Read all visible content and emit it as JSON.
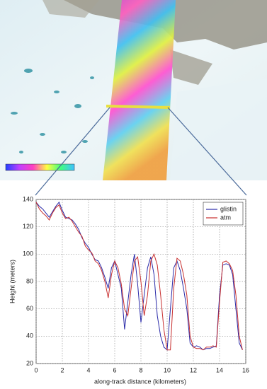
{
  "chart_data": {
    "type": "line",
    "xlabel": "along-track distance (kilometers)",
    "ylabel": "Height (meters)",
    "x": [
      0,
      0.25,
      0.5,
      0.75,
      1,
      1.25,
      1.5,
      1.75,
      2,
      2.25,
      2.5,
      2.75,
      3,
      3.25,
      3.5,
      3.75,
      4,
      4.25,
      4.5,
      4.75,
      5,
      5.25,
      5.5,
      5.75,
      6,
      6.25,
      6.5,
      6.75,
      7,
      7.25,
      7.5,
      7.75,
      8,
      8.25,
      8.5,
      8.75,
      9,
      9.25,
      9.5,
      9.75,
      10,
      10.25,
      10.5,
      10.75,
      11,
      11.25,
      11.5,
      11.75,
      12,
      12.25,
      12.5,
      12.75,
      13,
      13.25,
      13.5,
      13.75,
      14,
      14.25,
      14.5,
      14.75,
      15,
      15.25,
      15.5,
      15.75
    ],
    "series": [
      {
        "name": "glistin",
        "color": "#2a2aa8",
        "values": [
          138,
          135,
          133,
          130,
          127,
          131,
          135,
          138,
          132,
          127,
          126,
          125,
          122,
          118,
          112,
          108,
          105,
          100,
          96,
          95,
          90,
          83,
          75,
          90,
          95,
          85,
          75,
          45,
          65,
          85,
          100,
          78,
          50,
          70,
          90,
          98,
          85,
          55,
          40,
          32,
          30,
          60,
          90,
          95,
          88,
          75,
          60,
          35,
          32,
          33,
          32,
          30,
          31,
          31,
          32,
          33,
          70,
          92,
          93,
          92,
          85,
          60,
          35,
          30
        ]
      },
      {
        "name": "atm",
        "color": "#c83030",
        "values": [
          138,
          133,
          130,
          128,
          125,
          130,
          134,
          136,
          130,
          126,
          127,
          124,
          120,
          116,
          113,
          106,
          103,
          101,
          95,
          93,
          88,
          80,
          68,
          85,
          95,
          90,
          78,
          60,
          55,
          75,
          95,
          98,
          80,
          55,
          70,
          95,
          100,
          92,
          70,
          45,
          30,
          30,
          75,
          97,
          95,
          85,
          70,
          40,
          32,
          31,
          31,
          30,
          32,
          32,
          33,
          32,
          65,
          94,
          95,
          93,
          88,
          70,
          40,
          30
        ]
      }
    ],
    "xlim": [
      0,
      16
    ],
    "xticks": [
      0,
      2,
      4,
      6,
      8,
      10,
      12,
      14,
      16
    ],
    "ylim": [
      20,
      140
    ],
    "yticks": [
      20,
      40,
      60,
      80,
      100,
      120,
      140
    ],
    "grid": true,
    "legend": "upper right"
  }
}
